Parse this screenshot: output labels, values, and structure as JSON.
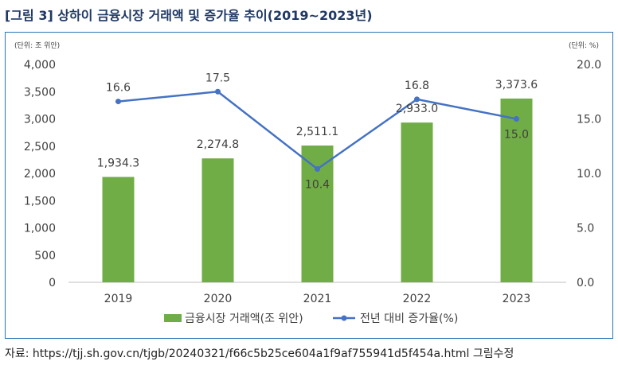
{
  "figure": {
    "title": "[그림 3] 상하이 금융시장 거래액 및 증가율 추이(2019~2023년)",
    "source": "자료: https://tjj.sh.gov.cn/tjgb/20240321/f66c5b25ce604a1f9af755941d5f454a.html 그림수정"
  },
  "colors": {
    "bar": "#70ad47",
    "line": "#4472c4",
    "frame": "#2e75b6",
    "title": "#1f3864",
    "text": "#404040"
  },
  "chart_data": {
    "type": "bar+line",
    "categories": [
      "2019",
      "2020",
      "2021",
      "2022",
      "2023"
    ],
    "series": [
      {
        "name": "금융시장 거래액(조 위안)",
        "type": "bar",
        "axis": "left",
        "values": [
          1934.3,
          2274.8,
          2511.1,
          2933.0,
          3373.6
        ],
        "labels": [
          "1,934.3",
          "2,274.8",
          "2,511.1",
          "2,933.0",
          "3,373.6"
        ]
      },
      {
        "name": "전년 대비 증가율(%)",
        "type": "line",
        "axis": "right",
        "values": [
          16.6,
          17.5,
          10.4,
          16.8,
          15.0
        ],
        "labels": [
          "16.6",
          "17.5",
          "10.4",
          "16.8",
          "15.0"
        ]
      }
    ],
    "y_left": {
      "unit": "(단위: 조 위안)",
      "range": [
        0,
        4000
      ],
      "ticks": [
        0,
        500,
        1000,
        1500,
        2000,
        2500,
        3000,
        3500,
        4000
      ],
      "tick_labels": [
        "0",
        "500",
        "1,000",
        "1,500",
        "2,000",
        "2,500",
        "3,000",
        "3,500",
        "4,000"
      ]
    },
    "y_right": {
      "unit": "(단위: %)",
      "range": [
        0,
        20
      ],
      "ticks": [
        0,
        5,
        10,
        15,
        20
      ],
      "tick_labels": [
        "0.0",
        "5.0",
        "10.0",
        "15.0",
        "20.0"
      ]
    },
    "grid": false,
    "legend_position": "bottom"
  }
}
